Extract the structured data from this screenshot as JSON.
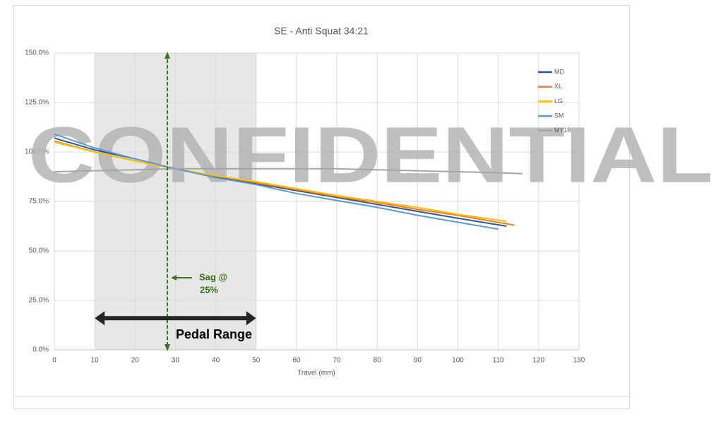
{
  "chart_data": {
    "type": "line",
    "title": "SE - Anti Squat 34:21",
    "x_label": "Travel (mm)",
    "xlim": [
      0,
      130
    ],
    "xticks": [
      0,
      10,
      20,
      30,
      40,
      50,
      60,
      70,
      80,
      90,
      100,
      110,
      120,
      130
    ],
    "ylim": [
      0,
      150
    ],
    "yticks": [
      {
        "value": 0,
        "label": "0.0%"
      },
      {
        "value": 25,
        "label": "25.0%"
      },
      {
        "value": 50,
        "label": "50.0%"
      },
      {
        "value": 75,
        "label": "75.0%"
      },
      {
        "value": 100,
        "label": "100.0%"
      },
      {
        "value": 125,
        "label": "125.0%"
      },
      {
        "value": 150,
        "label": "150.0%"
      }
    ],
    "grid": true,
    "legend": "upper right",
    "series": [
      {
        "name": "MD",
        "color": "#2f5597",
        "x": [
          0,
          10,
          20,
          30,
          40,
          50,
          60,
          70,
          80,
          90,
          100,
          112
        ],
        "values": [
          107,
          101,
          96.5,
          91.5,
          87.5,
          84,
          80.5,
          77,
          73.5,
          70,
          66.5,
          62.5
        ]
      },
      {
        "name": "XL",
        "color": "#ed7d31",
        "x": [
          0,
          10,
          20,
          30,
          40,
          50,
          60,
          70,
          80,
          90,
          100,
          114
        ],
        "values": [
          105.5,
          100,
          95.5,
          91.5,
          88,
          84.5,
          81,
          77.5,
          74.5,
          71,
          68,
          63
        ]
      },
      {
        "name": "LG",
        "color": "#ffc000",
        "x": [
          0,
          10,
          20,
          30,
          40,
          50,
          60,
          70,
          80,
          90,
          100,
          112
        ],
        "values": [
          105,
          100,
          95.5,
          91.5,
          88,
          85,
          81.5,
          78,
          75,
          72,
          68.5,
          65
        ]
      },
      {
        "name": "SM",
        "color": "#5b9bd5",
        "x": [
          0,
          10,
          20,
          30,
          40,
          50,
          60,
          70,
          80,
          90,
          100,
          110
        ],
        "values": [
          109,
          102,
          96.5,
          91.5,
          87,
          83.5,
          79,
          75.5,
          72,
          68,
          64.5,
          61
        ]
      },
      {
        "name": "MY18",
        "color": "#a5a5a5",
        "x": [
          0,
          10,
          20,
          30,
          40,
          50,
          60,
          70,
          80,
          90,
          100,
          110,
          116
        ],
        "values": [
          90,
          90.5,
          91,
          91.5,
          91.5,
          91.5,
          91.5,
          91.5,
          91,
          90.5,
          90,
          89.5,
          89
        ]
      }
    ],
    "shaded_range": [
      10,
      50
    ],
    "sag_x": 28,
    "pedal_range": [
      10,
      50
    ],
    "pedal_y": 16,
    "annotations": {
      "sag": [
        "Sag @",
        "25%"
      ],
      "pedal": "Pedal Range",
      "watermark": "CONFIDENTIAL"
    }
  }
}
